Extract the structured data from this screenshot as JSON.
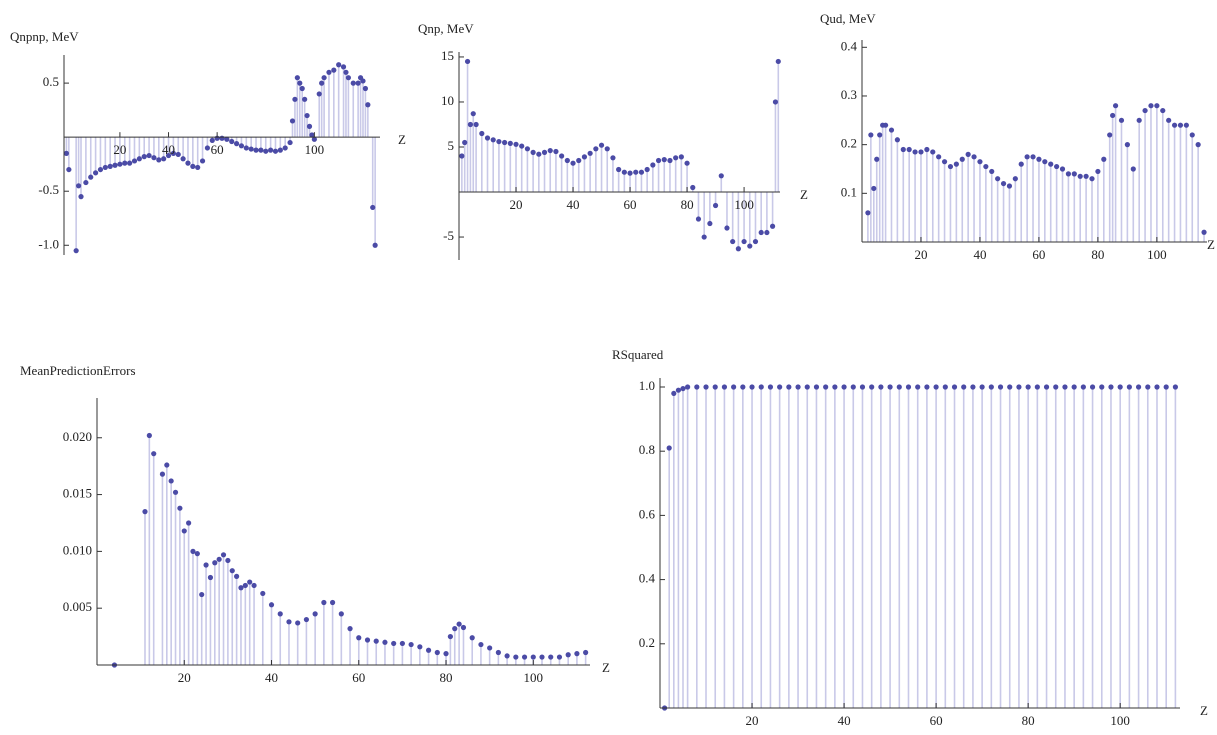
{
  "chart_data": [
    {
      "type": "stem",
      "title": "Qnpnp, MeV",
      "x_label": "Z",
      "color": "#4b4ba6",
      "fill_color": "#c9c9e8",
      "x": [
        -2,
        -1,
        2,
        3,
        4,
        6,
        8,
        10,
        12,
        14,
        16,
        18,
        20,
        22,
        24,
        26,
        28,
        30,
        32,
        34,
        36,
        38,
        40,
        42,
        44,
        46,
        48,
        50,
        52,
        54,
        56,
        58,
        60,
        62,
        64,
        66,
        68,
        70,
        72,
        74,
        76,
        78,
        80,
        82,
        84,
        86,
        88,
        90,
        91,
        92,
        93,
        94,
        95,
        96,
        97,
        98,
        99,
        100,
        102,
        103,
        104,
        106,
        108,
        110,
        112,
        113,
        114,
        116,
        118,
        119,
        120,
        121,
        122,
        124,
        125
      ],
      "values": [
        -0.15,
        -0.3,
        -1.05,
        -0.45,
        -0.55,
        -0.42,
        -0.37,
        -0.33,
        -0.3,
        -0.28,
        -0.27,
        -0.26,
        -0.25,
        -0.24,
        -0.24,
        -0.22,
        -0.2,
        -0.18,
        -0.17,
        -0.19,
        -0.21,
        -0.2,
        -0.17,
        -0.15,
        -0.16,
        -0.2,
        -0.24,
        -0.27,
        -0.28,
        -0.22,
        -0.1,
        -0.03,
        -0.01,
        -0.01,
        -0.02,
        -0.04,
        -0.06,
        -0.08,
        -0.1,
        -0.11,
        -0.12,
        -0.12,
        -0.13,
        -0.12,
        -0.13,
        -0.12,
        -0.1,
        -0.05,
        0.15,
        0.35,
        0.55,
        0.5,
        0.45,
        0.35,
        0.2,
        0.1,
        0.02,
        -0.02,
        0.4,
        0.5,
        0.55,
        0.6,
        0.62,
        0.67,
        0.65,
        0.6,
        0.55,
        0.5,
        0.5,
        0.55,
        0.52,
        0.45,
        0.3,
        -0.65,
        -1.0
      ],
      "xlim": [
        -3,
        127
      ],
      "ylim": [
        -1.09,
        0.76
      ],
      "xticks": [
        20,
        40,
        60,
        100
      ],
      "yticks": [
        {
          "value": -1,
          "label": "-1.0"
        },
        -0.5,
        0.5
      ]
    },
    {
      "type": "stem",
      "title": "Qnp, MeV",
      "x_label": "Z",
      "color": "#4b4ba6",
      "fill_color": "#c9c9e8",
      "x": [
        1,
        2,
        3,
        4,
        5,
        6,
        8,
        10,
        12,
        14,
        16,
        18,
        20,
        22,
        24,
        26,
        28,
        30,
        32,
        34,
        36,
        38,
        40,
        42,
        44,
        46,
        48,
        50,
        52,
        54,
        56,
        58,
        60,
        62,
        64,
        66,
        68,
        70,
        72,
        74,
        76,
        78,
        80,
        82,
        84,
        86,
        88,
        90,
        92,
        94,
        96,
        98,
        100,
        102,
        104,
        106,
        108,
        110,
        111,
        112
      ],
      "values": [
        4,
        5.5,
        14.5,
        7.5,
        8.7,
        7.5,
        6.5,
        6,
        5.8,
        5.6,
        5.5,
        5.4,
        5.3,
        5.1,
        4.8,
        4.4,
        4.2,
        4.4,
        4.6,
        4.5,
        4.0,
        3.5,
        3.2,
        3.5,
        3.9,
        4.3,
        4.8,
        5.2,
        4.8,
        3.8,
        2.5,
        2.2,
        2.1,
        2.2,
        2.2,
        2.5,
        3.0,
        3.5,
        3.6,
        3.5,
        3.8,
        3.9,
        3.2,
        0.5,
        -3,
        -5,
        -3.5,
        -1.5,
        1.8,
        -4,
        -5.5,
        -6.3,
        -5.5,
        -6,
        -5.5,
        -4.5,
        -4.5,
        -3.8,
        10,
        14.5
      ],
      "xlim": [
        0,
        112.6
      ],
      "ylim": [
        -7.55,
        15.55
      ],
      "xticks": [
        20,
        40,
        60,
        80,
        100
      ],
      "yticks": [
        -5,
        5,
        10,
        15
      ]
    },
    {
      "type": "stem",
      "title": "Qud, MeV",
      "x_label": "Z",
      "color": "#4b4ba6",
      "fill_color": "#c9c9e8",
      "x": [
        2,
        3,
        4,
        5,
        6,
        7,
        8,
        10,
        12,
        14,
        16,
        18,
        20,
        22,
        24,
        26,
        28,
        30,
        32,
        34,
        36,
        38,
        40,
        42,
        44,
        46,
        48,
        50,
        52,
        54,
        56,
        58,
        60,
        62,
        64,
        66,
        68,
        70,
        72,
        74,
        76,
        78,
        80,
        82,
        84,
        85,
        86,
        88,
        90,
        92,
        94,
        96,
        98,
        100,
        102,
        104,
        106,
        108,
        110,
        112,
        114,
        116
      ],
      "values": [
        0.06,
        0.22,
        0.11,
        0.17,
        0.22,
        0.24,
        0.24,
        0.23,
        0.21,
        0.19,
        0.19,
        0.185,
        0.185,
        0.19,
        0.185,
        0.175,
        0.165,
        0.155,
        0.16,
        0.17,
        0.18,
        0.175,
        0.165,
        0.155,
        0.145,
        0.13,
        0.12,
        0.115,
        0.13,
        0.16,
        0.175,
        0.175,
        0.17,
        0.165,
        0.16,
        0.155,
        0.15,
        0.14,
        0.14,
        0.135,
        0.135,
        0.13,
        0.145,
        0.17,
        0.22,
        0.26,
        0.28,
        0.25,
        0.2,
        0.15,
        0.25,
        0.27,
        0.28,
        0.28,
        0.27,
        0.25,
        0.24,
        0.24,
        0.24,
        0.22,
        0.2,
        0.02
      ],
      "xlim": [
        0,
        117
      ],
      "ylim": [
        0,
        0.415
      ],
      "xticks": [
        20,
        40,
        60,
        80,
        100
      ],
      "yticks": [
        0.1,
        0.2,
        0.3,
        0.4
      ]
    },
    {
      "type": "stem",
      "title": "MeanPredictionErrors",
      "x_label": "Z",
      "color": "#4b4ba6",
      "fill_color": "#c9c9e8",
      "x": [
        4,
        11,
        12,
        13,
        15,
        16,
        17,
        18,
        19,
        20,
        21,
        22,
        23,
        24,
        25,
        26,
        27,
        28,
        29,
        30,
        31,
        32,
        33,
        34,
        35,
        36,
        38,
        40,
        42,
        44,
        46,
        48,
        50,
        52,
        54,
        56,
        58,
        60,
        62,
        64,
        66,
        68,
        70,
        72,
        74,
        76,
        78,
        80,
        81,
        82,
        83,
        84,
        86,
        88,
        90,
        92,
        94,
        96,
        98,
        100,
        102,
        104,
        106,
        108,
        110,
        112
      ],
      "values": [
        0,
        0.0135,
        0.0202,
        0.0186,
        0.0168,
        0.0176,
        0.0162,
        0.0152,
        0.0138,
        0.0118,
        0.0125,
        0.01,
        0.0098,
        0.0062,
        0.0088,
        0.0077,
        0.009,
        0.0093,
        0.0097,
        0.0092,
        0.0083,
        0.0078,
        0.0068,
        0.007,
        0.0073,
        0.007,
        0.0063,
        0.0053,
        0.0045,
        0.0038,
        0.0037,
        0.004,
        0.0045,
        0.0055,
        0.0055,
        0.0045,
        0.0032,
        0.0024,
        0.0022,
        0.0021,
        0.002,
        0.0019,
        0.0019,
        0.0018,
        0.0016,
        0.0013,
        0.0011,
        0.001,
        0.0025,
        0.0032,
        0.0036,
        0.0033,
        0.0024,
        0.0018,
        0.0015,
        0.0011,
        0.0008,
        0.0007,
        0.0007,
        0.0007,
        0.0007,
        0.0007,
        0.0007,
        0.0009,
        0.001,
        0.0011
      ],
      "xlim": [
        0,
        113
      ],
      "ylim": [
        0,
        0.0235
      ],
      "xticks": [
        20,
        40,
        60,
        80,
        100
      ],
      "yticks": [
        0.005,
        {
          "value": 0.01,
          "label": "0.010"
        },
        0.015,
        {
          "value": 0.02,
          "label": "0.020"
        }
      ]
    },
    {
      "type": "stem",
      "title": "RSquared",
      "x_label": "Z",
      "color": "#4b4ba6",
      "fill_color": "#c9c9e8",
      "x": [
        1,
        2,
        3,
        4,
        5,
        6,
        8,
        10,
        12,
        14,
        16,
        18,
        20,
        22,
        24,
        26,
        28,
        30,
        32,
        34,
        36,
        38,
        40,
        42,
        44,
        46,
        48,
        50,
        52,
        54,
        56,
        58,
        60,
        62,
        64,
        66,
        68,
        70,
        72,
        74,
        76,
        78,
        80,
        82,
        84,
        86,
        88,
        90,
        92,
        94,
        96,
        98,
        100,
        102,
        104,
        106,
        108,
        110,
        112
      ],
      "values": [
        0,
        0.81,
        0.98,
        0.99,
        0.995,
        1,
        1,
        1,
        1,
        1,
        1,
        1,
        1,
        1,
        1,
        1,
        1,
        1,
        1,
        1,
        1,
        1,
        1,
        1,
        1,
        1,
        1,
        1,
        1,
        1,
        1,
        1,
        1,
        1,
        1,
        1,
        1,
        1,
        1,
        1,
        1,
        1,
        1,
        1,
        1,
        1,
        1,
        1,
        1,
        1,
        1,
        1,
        1,
        1,
        1,
        1,
        1,
        1,
        1
      ],
      "xlim": [
        0,
        113
      ],
      "ylim": [
        0,
        1.028
      ],
      "xticks": [
        20,
        40,
        60,
        80,
        100
      ],
      "yticks": [
        0.2,
        0.4,
        0.6,
        0.8,
        {
          "value": 1,
          "label": "1.0"
        }
      ]
    }
  ]
}
